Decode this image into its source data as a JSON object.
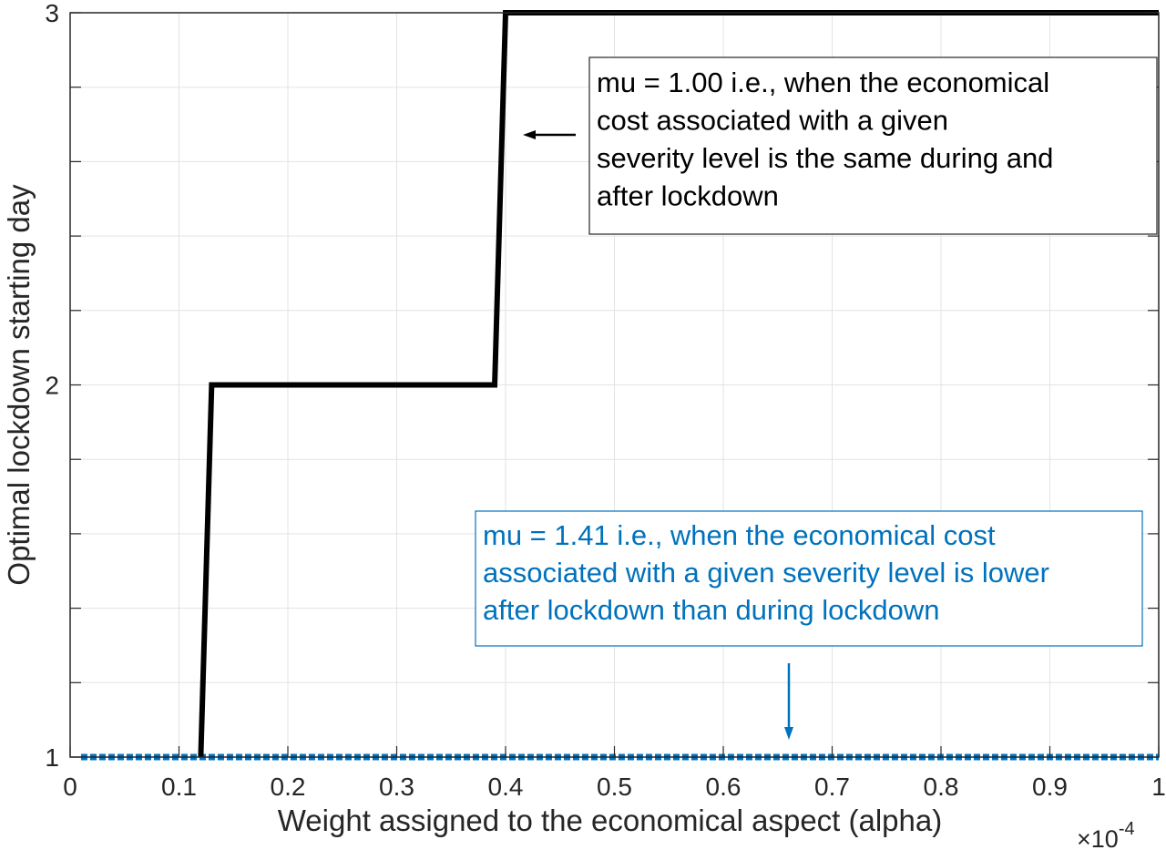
{
  "chart_data": {
    "type": "line",
    "xlabel": "Weight assigned to the economical aspect (alpha)",
    "ylabel": "Optimal lockdown starting day",
    "x_multiplier": {
      "base": "×10",
      "exponent": "-4"
    },
    "xlim": [
      0,
      1
    ],
    "xticks": [
      0,
      0.1,
      0.2,
      0.3,
      0.4,
      0.5,
      0.6,
      0.7,
      0.8,
      0.9,
      1
    ],
    "ylim": [
      1,
      3
    ],
    "yticks": [
      1,
      2,
      3
    ],
    "y_minor_ticks": [
      1.2,
      1.4,
      1.6,
      1.8,
      2.2,
      2.4,
      2.6,
      2.8
    ],
    "grid": true,
    "series": [
      {
        "name": "mu = 1.00",
        "color": "#000000",
        "style": "solid",
        "x": [
          0.12,
          0.13,
          0.39,
          0.4,
          1.0
        ],
        "values": [
          1,
          2,
          2,
          3,
          3
        ]
      },
      {
        "name": "mu = 1.41",
        "color": "#0072bd",
        "style": "dotted",
        "x": [
          0.01,
          1.0
        ],
        "values": [
          1,
          1
        ]
      }
    ],
    "annotations": [
      {
        "color": "#000000",
        "lines": [
          "mu = 1.00 i.e., when the economical",
          "cost associated with a given",
          "severity level is the same during and",
          "after lockdown"
        ]
      },
      {
        "color": "#0072bd",
        "lines": [
          "mu = 1.41 i.e., when the economical cost",
          "associated with a given severity level is lower",
          "after lockdown than during lockdown"
        ]
      }
    ]
  }
}
